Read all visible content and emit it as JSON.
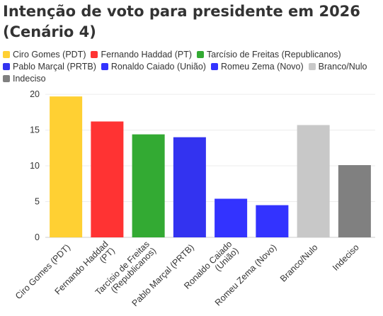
{
  "title_line1": "Intenção de voto para presidente em 2026",
  "title_line2": "(Cenário 4)",
  "chart_data": {
    "type": "bar",
    "title": "Intenção de voto para presidente em 2026 (Cenário 4)",
    "xlabel": "",
    "ylabel": "",
    "ylim": [
      0,
      21
    ],
    "yticks": [
      0,
      5,
      10,
      15,
      20
    ],
    "grid": true,
    "legend_position": "top",
    "categories": [
      "Ciro Gomes (PDT)",
      "Fernando Haddad (PT)",
      "Tarcísio de Freitas (Republicanos)",
      "Pablo Marçal (PRTB)",
      "Ronaldo Caiado (União)",
      "Romeu Zema (Novo)",
      "Branco/Nulo",
      "Indeciso"
    ],
    "tick_labels": [
      [
        "Ciro Gomes (PDT)"
      ],
      [
        "Fernando Haddad",
        "(PT)"
      ],
      [
        "Tarcísio de Freitas",
        "(Republicanos)"
      ],
      [
        "Pablo Marçal (PRTB)"
      ],
      [
        "Ronaldo Caiado",
        "(União)"
      ],
      [
        "Romeu Zema (Novo)"
      ],
      [
        "Branco/Nulo"
      ],
      [
        "Indeciso"
      ]
    ],
    "values": [
      19.7,
      16.2,
      14.4,
      14.0,
      5.4,
      4.5,
      15.7,
      10.1
    ],
    "colors": [
      "#FFD033",
      "#FF3333",
      "#33AA33",
      "#3333F0",
      "#3333FF",
      "#3333FF",
      "#C8C8C8",
      "#808080"
    ]
  },
  "legend": {
    "rows": [
      [
        {
          "label": "Ciro Gomes (PDT)",
          "color": "#FFD033"
        },
        {
          "label": "Fernando Haddad (PT)",
          "color": "#FF3333"
        },
        {
          "label": "Tarcísio de Freitas (Republicanos)",
          "color": "#33AA33"
        }
      ],
      [
        {
          "label": "Pablo Marçal (PRTB)",
          "color": "#3333F0"
        },
        {
          "label": "Ronaldo Caiado (União)",
          "color": "#3333FF"
        },
        {
          "label": "Romeu Zema (Novo)",
          "color": "#3333FF"
        },
        {
          "label": "Branco/Nulo",
          "color": "#C8C8C8"
        }
      ],
      [
        {
          "label": "Indeciso",
          "color": "#808080"
        }
      ]
    ]
  }
}
